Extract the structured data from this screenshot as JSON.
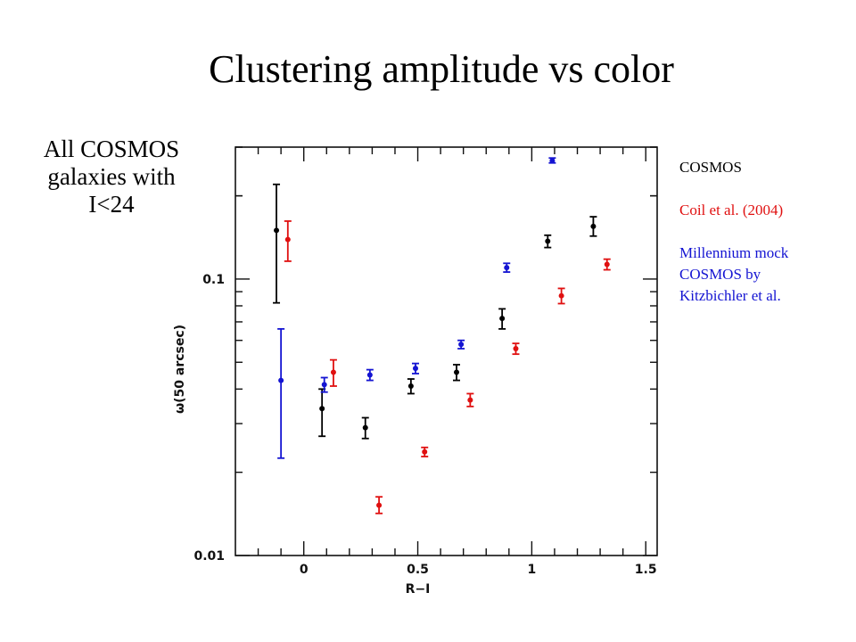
{
  "title": "Clustering amplitude vs color",
  "side_note": [
    "All COSMOS",
    "galaxies with",
    "I<24"
  ],
  "legend": [
    {
      "lines": [
        "COSMOS"
      ],
      "color": "#000000"
    },
    {
      "lines": [
        "Coil et al. (2004)"
      ],
      "color": "#e01010"
    },
    {
      "lines": [
        "Millennium mock",
        "COSMOS by",
        "Kitzbichler et al."
      ],
      "color": "#1414d2"
    }
  ],
  "chart_data": {
    "type": "scatter",
    "xlabel": "R−I",
    "ylabel": "ω(50 arcsec)",
    "xlim": [
      -0.3,
      1.55
    ],
    "ylim": [
      0.01,
      0.3
    ],
    "yscale": "log",
    "x_ticks": [
      {
        "v": 0,
        "label": "0"
      },
      {
        "v": 0.5,
        "label": "0.5"
      },
      {
        "v": 1,
        "label": "1"
      },
      {
        "v": 1.5,
        "label": "1.5"
      }
    ],
    "y_ticks": [
      {
        "v": 0.01,
        "label": "0.01"
      },
      {
        "v": 0.1,
        "label": "0.1"
      }
    ],
    "series": [
      {
        "color": "#000000",
        "points": [
          {
            "x": -0.12,
            "y": 0.15,
            "lo": 0.082,
            "hi": 0.22
          },
          {
            "x": 0.08,
            "y": 0.034,
            "lo": 0.027,
            "hi": 0.04
          },
          {
            "x": 0.27,
            "y": 0.029,
            "lo": 0.0265,
            "hi": 0.0315
          },
          {
            "x": 0.47,
            "y": 0.041,
            "lo": 0.0385,
            "hi": 0.0435
          },
          {
            "x": 0.67,
            "y": 0.046,
            "lo": 0.043,
            "hi": 0.049
          },
          {
            "x": 0.87,
            "y": 0.072,
            "lo": 0.066,
            "hi": 0.078
          },
          {
            "x": 1.07,
            "y": 0.137,
            "lo": 0.13,
            "hi": 0.144
          },
          {
            "x": 1.27,
            "y": 0.155,
            "lo": 0.143,
            "hi": 0.168
          }
        ]
      },
      {
        "color": "#e01010",
        "points": [
          {
            "x": -0.07,
            "y": 0.139,
            "lo": 0.116,
            "hi": 0.162
          },
          {
            "x": 0.13,
            "y": 0.046,
            "lo": 0.041,
            "hi": 0.051
          },
          {
            "x": 0.33,
            "y": 0.0152,
            "lo": 0.0142,
            "hi": 0.0163
          },
          {
            "x": 0.53,
            "y": 0.0237,
            "lo": 0.0228,
            "hi": 0.0246
          },
          {
            "x": 0.73,
            "y": 0.0365,
            "lo": 0.0346,
            "hi": 0.0385
          },
          {
            "x": 0.93,
            "y": 0.056,
            "lo": 0.0535,
            "hi": 0.0585
          },
          {
            "x": 1.13,
            "y": 0.087,
            "lo": 0.0815,
            "hi": 0.0925
          },
          {
            "x": 1.33,
            "y": 0.113,
            "lo": 0.108,
            "hi": 0.118
          }
        ]
      },
      {
        "color": "#1414d2",
        "points": [
          {
            "x": -0.1,
            "y": 0.043,
            "lo": 0.0225,
            "hi": 0.066
          },
          {
            "x": 0.09,
            "y": 0.0415,
            "lo": 0.039,
            "hi": 0.044
          },
          {
            "x": 0.29,
            "y": 0.045,
            "lo": 0.043,
            "hi": 0.047
          },
          {
            "x": 0.49,
            "y": 0.0475,
            "lo": 0.0455,
            "hi": 0.0495
          },
          {
            "x": 0.69,
            "y": 0.058,
            "lo": 0.056,
            "hi": 0.06
          },
          {
            "x": 0.89,
            "y": 0.11,
            "lo": 0.106,
            "hi": 0.114
          },
          {
            "x": 1.09,
            "y": 0.268,
            "lo": 0.263,
            "hi": 0.274
          }
        ]
      }
    ]
  }
}
